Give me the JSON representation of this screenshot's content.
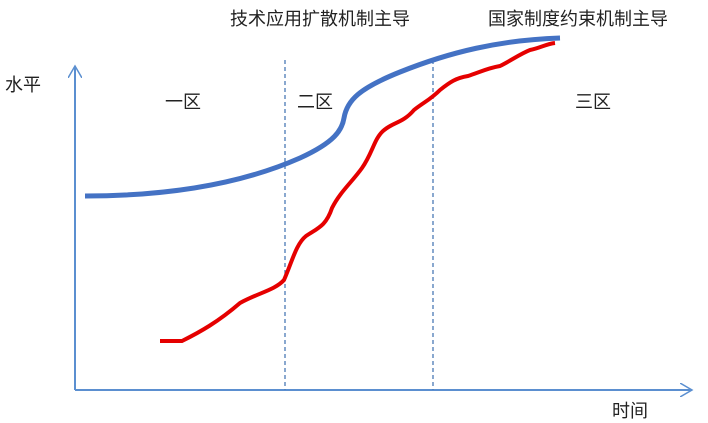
{
  "labels": {
    "left_top": "技术应用扩散机制主导",
    "right_top": "国家制度约束机制主导",
    "y_axis": "水平",
    "x_axis": "时间"
  },
  "zones": [
    "一区",
    "二区",
    "三区"
  ]
}
